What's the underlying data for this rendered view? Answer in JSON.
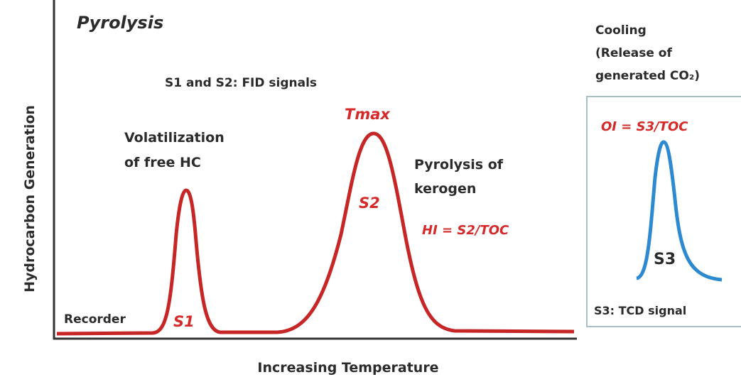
{
  "title": "Pyrolysis",
  "y_axis_label": "Hydrocarbon Generation",
  "x_axis_label": "Increasing Temperature",
  "fid_note": "S1 and S2: FID signals",
  "s1_description": [
    "Volatilization",
    "of free HC"
  ],
  "s1_label": "S1",
  "recorder_label": "Recorder",
  "tmax_label": "Tmax",
  "s2_label": "S2",
  "s2_description": [
    "Pyrolysis of",
    "kerogen"
  ],
  "hi_formula": "HI = S2/TOC",
  "cooling_note": [
    "Cooling",
    "(Release of",
    "generated CO₂)"
  ],
  "oi_formula": "OI = S3/TOC",
  "s3_label": "S3",
  "tcd_note": "S3: TCD signal"
}
